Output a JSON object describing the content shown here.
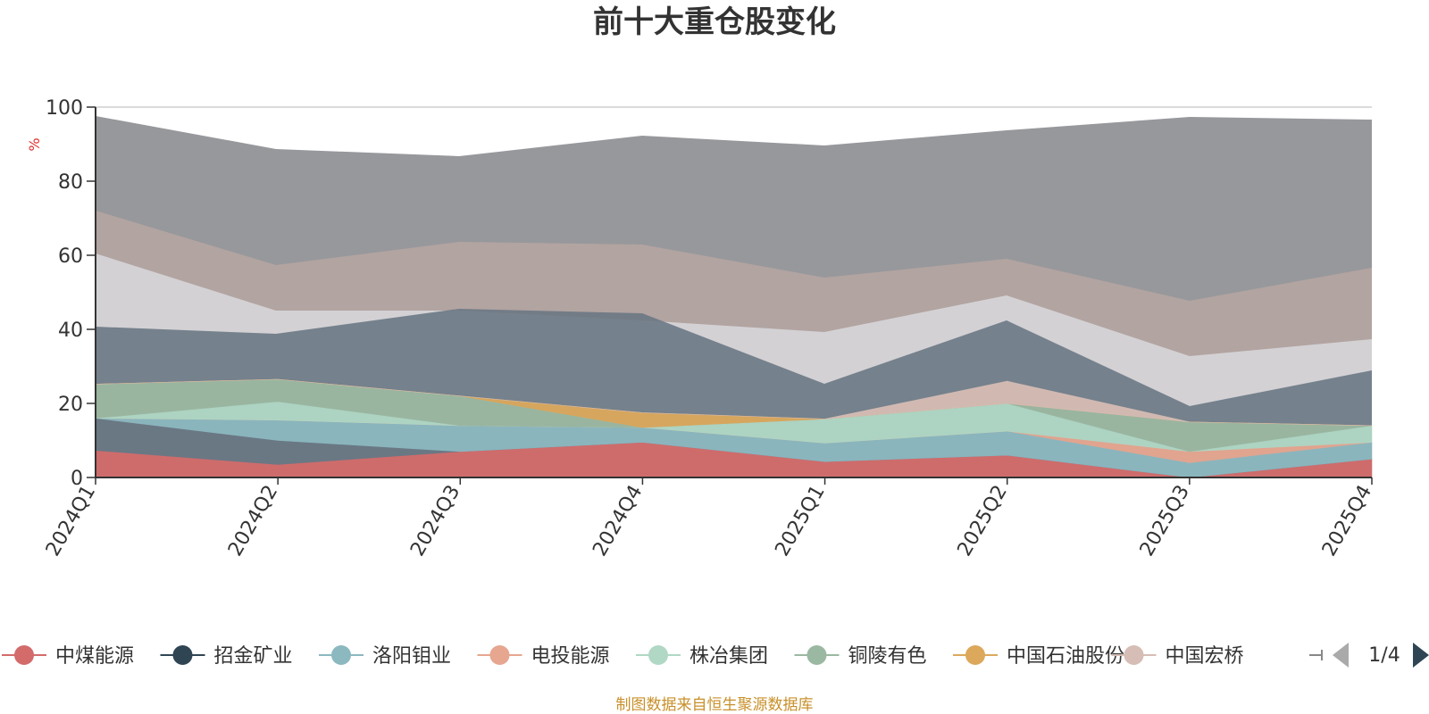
{
  "chart_data": {
    "type": "area",
    "stacked": true,
    "title": "前十大重仓股变化",
    "ylabel": "%",
    "xlabel": "",
    "ylim": [
      0,
      100
    ],
    "yticks": [
      0,
      20,
      40,
      60,
      80,
      100
    ],
    "categories": [
      "2024Q1",
      "2024Q2",
      "2024Q3",
      "2024Q4",
      "2025Q1",
      "2025Q2",
      "2025Q3",
      "2025Q4"
    ],
    "series": [
      {
        "name": "中煤能源",
        "color": "#d36b6b",
        "values": [
          7.3,
          3.5,
          7.0,
          9.5,
          4.3,
          6.0,
          0.0,
          5.0
        ]
      },
      {
        "name": "招金矿业",
        "color": "#6a7884",
        "values": [
          8.7,
          6.5,
          0.0,
          0.0,
          0.0,
          0.0,
          0.0,
          0.0
        ]
      },
      {
        "name": "洛阳钼业",
        "color": "#8cb8c0",
        "values": [
          0.0,
          5.5,
          7.0,
          4.0,
          5.0,
          6.5,
          4.0,
          4.5
        ]
      },
      {
        "name": "电投能源",
        "color": "#e6a690",
        "values": [
          0.0,
          0.0,
          0.0,
          0.0,
          0.0,
          0.0,
          3.0,
          0.0
        ]
      },
      {
        "name": "株冶集团",
        "color": "#b0d8c5",
        "values": [
          0.0,
          5.0,
          0.0,
          0.0,
          6.5,
          7.5,
          0.0,
          4.5
        ]
      },
      {
        "name": "铜陵有色",
        "color": "#9bb8a2",
        "values": [
          9.2,
          6.0,
          8.0,
          0.0,
          0.0,
          0.0,
          8.0,
          0.0
        ]
      },
      {
        "name": "中国石油股份",
        "color": "#dca85c",
        "values": [
          0.0,
          0.0,
          0.0,
          4.0,
          0.0,
          0.0,
          0.0,
          0.0
        ]
      },
      {
        "name": "中国宏桥",
        "color": "#d6bdb5",
        "values": [
          0.0,
          0.0,
          0.0,
          0.0,
          0.0,
          6.0,
          0.0,
          0.0
        ]
      }
    ],
    "legend_pager": "1/4"
  },
  "source_note": "制图数据来自恒生聚源数据库"
}
